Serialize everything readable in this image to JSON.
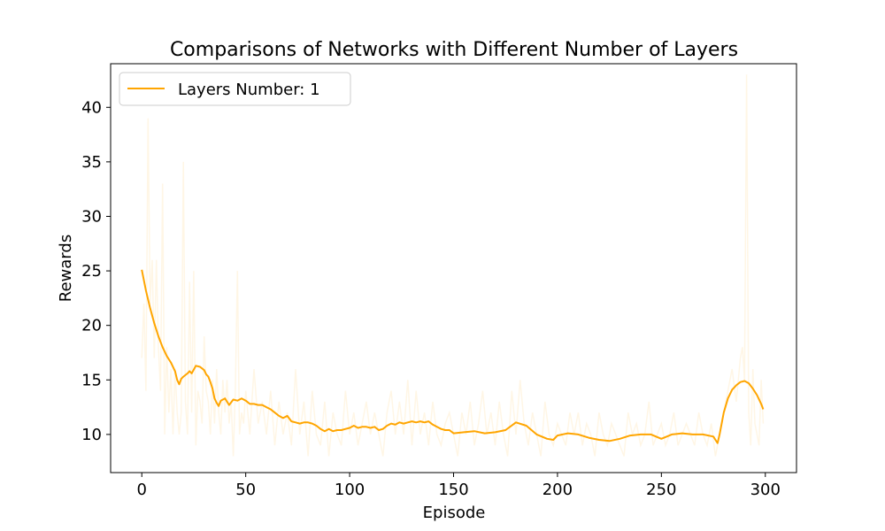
{
  "chart_data": {
    "type": "line",
    "title": "Comparisons of Networks with Different Number of Layers",
    "xlabel": "Episode",
    "ylabel": "Rewards",
    "xlim": [
      -15,
      315
    ],
    "ylim": [
      6.5,
      44.0
    ],
    "xticks": [
      0,
      50,
      100,
      150,
      200,
      250,
      300
    ],
    "yticks": [
      10,
      15,
      20,
      25,
      30,
      35,
      40
    ],
    "legend_position": "upper-left",
    "grid": false,
    "series": [
      {
        "name": "Layers Number: 1",
        "role": "smoothed",
        "color": "#ffa500",
        "x": [
          0,
          2,
          4,
          6,
          8,
          10,
          12,
          14,
          16,
          17,
          18,
          19,
          20,
          22,
          23,
          24,
          26,
          28,
          30,
          31,
          32,
          33,
          34,
          35,
          36,
          37,
          38,
          40,
          42,
          44,
          46,
          48,
          50,
          52,
          54,
          56,
          58,
          60,
          62,
          64,
          66,
          68,
          70,
          72,
          74,
          76,
          78,
          80,
          82,
          84,
          86,
          88,
          90,
          92,
          94,
          96,
          98,
          100,
          102,
          104,
          106,
          108,
          110,
          112,
          114,
          116,
          118,
          120,
          122,
          124,
          126,
          128,
          130,
          132,
          134,
          136,
          138,
          140,
          142,
          144,
          146,
          148,
          150,
          155,
          160,
          165,
          170,
          175,
          180,
          185,
          190,
          195,
          198,
          200,
          205,
          210,
          215,
          220,
          225,
          230,
          235,
          240,
          245,
          250,
          255,
          260,
          265,
          270,
          275,
          276,
          277,
          278,
          280,
          282,
          284,
          286,
          288,
          290,
          292,
          294,
          296,
          298,
          299
        ],
        "y": [
          25.1,
          23.2,
          21.6,
          20.2,
          19.0,
          18.0,
          17.2,
          16.6,
          15.8,
          15.0,
          14.6,
          15.1,
          15.3,
          15.6,
          15.8,
          15.6,
          16.3,
          16.2,
          15.9,
          15.5,
          15.3,
          14.8,
          14.2,
          13.3,
          12.9,
          12.6,
          13.1,
          13.3,
          12.7,
          13.2,
          13.1,
          13.3,
          13.1,
          12.8,
          12.8,
          12.7,
          12.7,
          12.5,
          12.3,
          12.0,
          11.7,
          11.5,
          11.7,
          11.2,
          11.1,
          11.0,
          11.1,
          11.1,
          11.0,
          10.8,
          10.5,
          10.3,
          10.5,
          10.3,
          10.4,
          10.4,
          10.5,
          10.6,
          10.8,
          10.6,
          10.7,
          10.7,
          10.6,
          10.7,
          10.4,
          10.5,
          10.8,
          11.0,
          10.9,
          11.1,
          11.0,
          11.1,
          11.2,
          11.1,
          11.2,
          11.1,
          11.2,
          10.9,
          10.7,
          10.5,
          10.4,
          10.4,
          10.1,
          10.2,
          10.3,
          10.1,
          10.2,
          10.4,
          11.1,
          10.8,
          10.0,
          9.6,
          9.5,
          9.9,
          10.1,
          10.0,
          9.7,
          9.5,
          9.4,
          9.6,
          9.9,
          10.0,
          10.0,
          9.6,
          10.0,
          10.1,
          10.0,
          10.0,
          9.8,
          9.5,
          9.2,
          10.0,
          12.0,
          13.3,
          14.1,
          14.5,
          14.8,
          14.9,
          14.7,
          14.2,
          13.6,
          12.8,
          12.3
        ]
      },
      {
        "name": "",
        "role": "raw",
        "color": "#ffa500",
        "opacity": 0.1,
        "x": [
          0,
          1,
          2,
          3,
          4,
          5,
          6,
          7,
          8,
          9,
          10,
          11,
          12,
          13,
          14,
          15,
          16,
          17,
          18,
          19,
          20,
          21,
          22,
          23,
          24,
          25,
          26,
          27,
          28,
          29,
          30,
          31,
          32,
          33,
          34,
          35,
          36,
          37,
          38,
          39,
          40,
          41,
          42,
          43,
          44,
          45,
          46,
          47,
          48,
          49,
          50,
          52,
          54,
          56,
          58,
          60,
          62,
          64,
          66,
          68,
          70,
          72,
          74,
          76,
          78,
          80,
          82,
          84,
          86,
          88,
          90,
          92,
          94,
          96,
          98,
          100,
          102,
          104,
          106,
          108,
          110,
          112,
          114,
          116,
          118,
          120,
          122,
          124,
          126,
          128,
          130,
          132,
          134,
          136,
          138,
          140,
          142,
          144,
          146,
          148,
          150,
          152,
          154,
          156,
          158,
          160,
          162,
          164,
          166,
          168,
          170,
          172,
          174,
          176,
          178,
          180,
          182,
          184,
          186,
          188,
          190,
          192,
          194,
          196,
          198,
          200,
          202,
          204,
          206,
          208,
          210,
          212,
          214,
          216,
          218,
          220,
          222,
          224,
          226,
          228,
          230,
          232,
          234,
          236,
          238,
          240,
          242,
          244,
          246,
          248,
          250,
          252,
          254,
          256,
          258,
          260,
          262,
          264,
          266,
          268,
          270,
          272,
          274,
          276,
          278,
          280,
          282,
          284,
          286,
          288,
          289,
          290,
          291,
          292,
          293,
          294,
          295,
          296,
          297,
          298,
          299
        ],
        "y": [
          17,
          22,
          14,
          39,
          22,
          26,
          17,
          26,
          18,
          14,
          33,
          10,
          18,
          12,
          16,
          10,
          16,
          12,
          10,
          12,
          35,
          13,
          10,
          24,
          12,
          25,
          9,
          14,
          13,
          11,
          19,
          14,
          13,
          10,
          15,
          11,
          16,
          12,
          10,
          15,
          12,
          15,
          11,
          13,
          8,
          14,
          25,
          10,
          12,
          11,
          14,
          10,
          16,
          11,
          13,
          10,
          14,
          9,
          13,
          10,
          12,
          9,
          16,
          10,
          13,
          8,
          14,
          10,
          9,
          13,
          8,
          12,
          10,
          9,
          14,
          10,
          12,
          9,
          11,
          13,
          10,
          12,
          10,
          8,
          12,
          14,
          10,
          13,
          10,
          15,
          9,
          14,
          10,
          12,
          9,
          13,
          10,
          9,
          11,
          12,
          10,
          8,
          12,
          10,
          13,
          9,
          11,
          14,
          10,
          12,
          9,
          13,
          10,
          8,
          14,
          10,
          15,
          11,
          9,
          12,
          10,
          8,
          13,
          10,
          9,
          11,
          10,
          9,
          12,
          10,
          12,
          9,
          11,
          10,
          8,
          12,
          10,
          9,
          11,
          10,
          9,
          8,
          12,
          10,
          11,
          9,
          10,
          13,
          9,
          10,
          11,
          9,
          10,
          12,
          9,
          10,
          11,
          10,
          9,
          12,
          10,
          9,
          11,
          8,
          10,
          12,
          14,
          16,
          13,
          17,
          18,
          15,
          43,
          12,
          9,
          16,
          11,
          10,
          9,
          15,
          11
        ]
      }
    ]
  }
}
